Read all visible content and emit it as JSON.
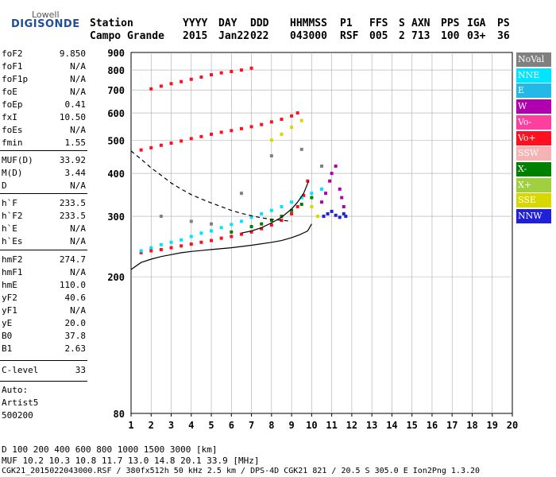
{
  "logo": {
    "line1": "Lowell",
    "line2": "DIGISONDE"
  },
  "header": {
    "row1": [
      "Station",
      "YYYY",
      "DAY",
      "DDD",
      "HHMMSS",
      "P1",
      "FFS",
      "S",
      "AXN",
      "PPS",
      "IGA",
      "PS"
    ],
    "row2": [
      "Campo Grande",
      "2015",
      "Jan22",
      "022",
      "043000",
      "RSF",
      "005",
      "2",
      "713",
      "100",
      "03+",
      "36"
    ]
  },
  "params": [
    {
      "k": "foF2",
      "v": "9.850"
    },
    {
      "k": "foF1",
      "v": "N/A"
    },
    {
      "k": "foF1p",
      "v": "N/A"
    },
    {
      "k": "foE",
      "v": "N/A"
    },
    {
      "k": "foEp",
      "v": "0.41"
    },
    {
      "k": "fxI",
      "v": "10.50"
    },
    {
      "k": "foEs",
      "v": "N/A"
    },
    {
      "k": "fmin",
      "v": "1.55"
    },
    {
      "k": "MUF(D)",
      "v": "33.92"
    },
    {
      "k": "M(D)",
      "v": "3.44"
    },
    {
      "k": "D",
      "v": "N/A"
    },
    {
      "k": "h`F",
      "v": "233.5"
    },
    {
      "k": "h`F2",
      "v": "233.5"
    },
    {
      "k": "h`E",
      "v": "N/A"
    },
    {
      "k": "h`Es",
      "v": "N/A"
    },
    {
      "k": "hmF2",
      "v": "274.7"
    },
    {
      "k": "hmF1",
      "v": "N/A"
    },
    {
      "k": "hmE",
      "v": "110.0"
    },
    {
      "k": "yF2",
      "v": "40.6"
    },
    {
      "k": "yF1",
      "v": "N/A"
    },
    {
      "k": "yE",
      "v": "20.0"
    },
    {
      "k": "B0",
      "v": "37.8"
    },
    {
      "k": "B1",
      "v": "2.63"
    },
    {
      "k": "C-level",
      "v": "33"
    }
  ],
  "notes": [
    "Auto:",
    "Artist5",
    "500200"
  ],
  "legend": [
    {
      "label": "NoVal",
      "color": "#808080"
    },
    {
      "label": "NNE",
      "color": "#00e5ff"
    },
    {
      "label": "E",
      "color": "#22b8e8"
    },
    {
      "label": "W",
      "color": "#b000b0"
    },
    {
      "label": "Vo-",
      "color": "#ff3fa0"
    },
    {
      "label": "Vo+",
      "color": "#ff1020"
    },
    {
      "label": "SSW",
      "color": "#f5b3b3"
    },
    {
      "label": "X-",
      "color": "#008000"
    },
    {
      "label": "X+",
      "color": "#a0d040"
    },
    {
      "label": "SSE",
      "color": "#d8d800"
    },
    {
      "label": "NNW",
      "color": "#2020d8"
    }
  ],
  "footer": {
    "d_row": "D      100  200  400  600  800 1000 1500 3000 [km]",
    "muf_row": "MUF  10.2 10.3 10.8 11.7 13.0 14.8 20.1 33.9 [MHz]",
    "file_row": "CGK21_2015022043000.RSF / 380fx512h 50 kHz 2.5 km / DPS-4D CGK21 821 / 20.5 S 305.0 E Ion2Png 1.3.20"
  },
  "chart_data": {
    "type": "scatter",
    "title": "",
    "xlabel": "",
    "ylabel": "",
    "xlim": [
      1,
      20
    ],
    "ylim": [
      80,
      900
    ],
    "y_scale": "log",
    "grid": true,
    "legend_position": "right",
    "x_ticks": [
      1,
      2,
      3,
      4,
      5,
      6,
      7,
      8,
      9,
      10,
      11,
      12,
      13,
      14,
      15,
      16,
      17,
      18,
      19,
      20
    ],
    "y_ticks": [
      80,
      200,
      300,
      400,
      500,
      600,
      700,
      800,
      900
    ],
    "series": [
      {
        "name": "Vo+",
        "color": "#ff1020",
        "x": [
          1.5,
          2.0,
          2.5,
          3.0,
          3.5,
          4.0,
          4.5,
          5.0,
          5.5,
          6.0,
          6.5,
          7.0,
          7.5,
          8.0,
          8.5,
          9.0,
          9.3,
          9.6,
          9.8
        ],
        "y": [
          235,
          238,
          240,
          243,
          246,
          249,
          252,
          255,
          259,
          262,
          266,
          270,
          276,
          283,
          292,
          305,
          320,
          345,
          380
        ]
      },
      {
        "name": "Vo+",
        "color": "#ff1020",
        "x": [
          1.5,
          2.0,
          2.5,
          3.0,
          3.5,
          4.0,
          4.5,
          5.0,
          5.5,
          6.0,
          6.5,
          7.0,
          7.5,
          8.0,
          8.5,
          9.0,
          9.3
        ],
        "y": [
          468,
          475,
          483,
          490,
          497,
          505,
          512,
          520,
          527,
          533,
          540,
          547,
          555,
          565,
          575,
          588,
          600
        ]
      },
      {
        "name": "Vo+",
        "color": "#ff1020",
        "x": [
          2.0,
          2.5,
          3.0,
          3.5,
          4.0,
          4.5,
          5.0,
          5.5,
          6.0,
          6.5,
          7.0
        ],
        "y": [
          705,
          718,
          730,
          740,
          752,
          763,
          775,
          785,
          792,
          800,
          810
        ]
      },
      {
        "name": "NNE",
        "color": "#00e5ff",
        "x": [
          1.5,
          2.0,
          2.5,
          3.0,
          3.5,
          4.0,
          4.5,
          5.0,
          5.5,
          6.0,
          6.5,
          7.0,
          7.5,
          8.0,
          8.5,
          9.0,
          9.5,
          10.0,
          10.5
        ],
        "y": [
          238,
          243,
          248,
          252,
          256,
          262,
          268,
          272,
          278,
          284,
          290,
          298,
          305,
          312,
          320,
          330,
          340,
          350,
          360
        ]
      },
      {
        "name": "W",
        "color": "#b000b0",
        "x": [
          10.5,
          10.7,
          10.9,
          11.0,
          11.2,
          11.4,
          11.5,
          11.6
        ],
        "y": [
          330,
          350,
          380,
          400,
          420,
          360,
          340,
          320
        ]
      },
      {
        "name": "NNW",
        "color": "#2020d8",
        "x": [
          10.6,
          10.8,
          11.0,
          11.2,
          11.4,
          11.6,
          11.7
        ],
        "y": [
          300,
          305,
          310,
          302,
          298,
          305,
          300
        ]
      },
      {
        "name": "X-",
        "color": "#008000",
        "x": [
          6.0,
          7.0,
          7.5,
          8.0,
          8.5,
          9.0,
          9.5,
          10.0
        ],
        "y": [
          270,
          280,
          285,
          292,
          300,
          312,
          325,
          340
        ]
      },
      {
        "name": "SSE",
        "color": "#d8d800",
        "x": [
          8.0,
          8.5,
          9.0,
          9.5,
          10.0,
          10.3
        ],
        "y": [
          500,
          520,
          545,
          570,
          320,
          300
        ]
      },
      {
        "name": "NoVal",
        "color": "#808080",
        "x": [
          2.5,
          4.0,
          5.0,
          6.5,
          8.0,
          9.5,
          10.5
        ],
        "y": [
          300,
          290,
          285,
          350,
          450,
          470,
          420
        ]
      }
    ],
    "profiles": [
      {
        "style": "solid",
        "color": "#000000",
        "x": [
          1.0,
          1.5,
          2.0,
          2.5,
          3.0,
          3.5,
          4.0,
          5.0,
          6.0,
          7.0,
          8.0,
          8.5,
          9.0,
          9.4,
          9.8,
          10.0
        ],
        "y": [
          210,
          220,
          225,
          229,
          232,
          235,
          237,
          240,
          243,
          247,
          252,
          255,
          260,
          265,
          272,
          285
        ]
      },
      {
        "style": "solid",
        "color": "#000000",
        "x": [
          6.5,
          7.0,
          7.5,
          8.0,
          8.5,
          9.0,
          9.3,
          9.6,
          9.85
        ],
        "y": [
          268,
          272,
          278,
          287,
          298,
          315,
          330,
          350,
          380
        ]
      },
      {
        "style": "dashed",
        "color": "#000000",
        "x": [
          1.0,
          1.5,
          2.0,
          2.5,
          3.0,
          3.5,
          4.0,
          4.5,
          5.0,
          5.5,
          6.0,
          6.5,
          7.0,
          7.5,
          8.0,
          8.5,
          9.0
        ],
        "y": [
          465,
          440,
          415,
          395,
          375,
          360,
          347,
          337,
          328,
          320,
          312,
          306,
          301,
          297,
          294,
          292,
          290
        ]
      }
    ]
  }
}
